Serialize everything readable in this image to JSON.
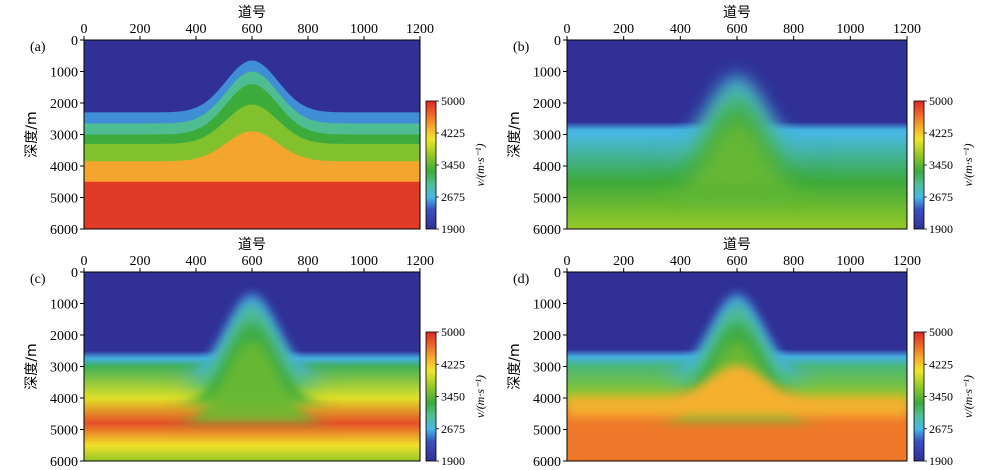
{
  "chart_data": [
    {
      "type": "heatmap",
      "panel_label": "(a)",
      "xlabel": "道号",
      "ylabel": "深度/m",
      "x_ticks": [
        "0",
        "200",
        "400",
        "600",
        "800",
        "1000",
        "1200"
      ],
      "y_ticks": [
        "0",
        "1000",
        "2000",
        "3000",
        "4000",
        "5000",
        "6000"
      ],
      "xlim": [
        0,
        1200
      ],
      "ylim": [
        0,
        6000
      ],
      "anticline_center_trace": 600,
      "layers": [
        {
          "top_flank_m": 0,
          "top_crest_m": 0,
          "velocity": 1900
        },
        {
          "top_flank_m": 2300,
          "top_crest_m": 650,
          "velocity": 2550
        },
        {
          "top_flank_m": 2650,
          "top_crest_m": 1000,
          "velocity": 3000
        },
        {
          "top_flank_m": 3000,
          "top_crest_m": 1400,
          "velocity": 3300
        },
        {
          "top_flank_m": 3300,
          "top_crest_m": 2050,
          "velocity": 3600
        },
        {
          "top_flank_m": 3850,
          "top_crest_m": 2900,
          "velocity": 4400
        },
        {
          "top_flank_m": 4500,
          "top_crest_m": 4500,
          "velocity": 4900
        }
      ],
      "colorbar": {
        "label": "v/(m·s⁻¹)",
        "ticks": [
          "1900",
          "2675",
          "3450",
          "4225",
          "5000"
        ],
        "min": 1900,
        "max": 5000
      }
    },
    {
      "type": "heatmap",
      "panel_label": "(b)",
      "xlabel": "道号",
      "ylabel": "深度/m",
      "x_ticks": [
        "0",
        "200",
        "400",
        "600",
        "800",
        "1000",
        "1200"
      ],
      "y_ticks": [
        "0",
        "1000",
        "2000",
        "3000",
        "4000",
        "5000",
        "6000"
      ],
      "xlim": [
        0,
        1200
      ],
      "ylim": [
        0,
        6000
      ],
      "description_values": {
        "water_velocity": 1900,
        "top_flank_m": 2600,
        "top_crest_m": 1100,
        "deep_velocity_m_s": [
          [
            3000,
            2700
          ],
          [
            4500,
            3300
          ],
          [
            6000,
            3700
          ]
        ]
      },
      "colorbar": {
        "label": "v/(m·s⁻¹)",
        "ticks": [
          "1900",
          "2675",
          "3450",
          "4225",
          "5000"
        ],
        "min": 1900,
        "max": 5000
      }
    },
    {
      "type": "heatmap",
      "panel_label": "(c)",
      "xlabel": "道号",
      "ylabel": "深度/m",
      "x_ticks": [
        "0",
        "200",
        "400",
        "600",
        "800",
        "1000",
        "1200"
      ],
      "y_ticks": [
        "0",
        "1000",
        "2000",
        "3000",
        "4000",
        "5000",
        "6000"
      ],
      "xlim": [
        0,
        1200
      ],
      "ylim": [
        0,
        6000
      ],
      "description_values": {
        "water_velocity": 1900,
        "top_flank_m": 2500,
        "top_crest_m": 700,
        "deep_velocity_m_s": [
          [
            3000,
            3200
          ],
          [
            4000,
            4000
          ],
          [
            4800,
            4800
          ],
          [
            5500,
            4100
          ],
          [
            6000,
            3700
          ]
        ]
      },
      "colorbar": {
        "label": "v/(m·s⁻¹)",
        "ticks": [
          "1900",
          "2675",
          "3450",
          "4225",
          "5000"
        ],
        "min": 1900,
        "max": 5000
      }
    },
    {
      "type": "heatmap",
      "panel_label": "(d)",
      "xlabel": "道号",
      "ylabel": "深度/m",
      "x_ticks": [
        "0",
        "200",
        "400",
        "600",
        "800",
        "1000",
        "1200"
      ],
      "y_ticks": [
        "0",
        "1000",
        "2000",
        "3000",
        "4000",
        "5000",
        "6000"
      ],
      "xlim": [
        0,
        1200
      ],
      "ylim": [
        0,
        6000
      ],
      "description_values": {
        "water_velocity": 1900,
        "top_flank_m": 2450,
        "top_crest_m": 700,
        "salt_top_crest_m": 2950,
        "deep_velocity_m_s": [
          [
            3000,
            3100
          ],
          [
            4000,
            3700
          ],
          [
            4500,
            4600
          ],
          [
            6000,
            4600
          ]
        ]
      },
      "colorbar": {
        "label": "v/(m·s⁻¹)",
        "ticks": [
          "1900",
          "2675",
          "3450",
          "4225",
          "5000"
        ],
        "min": 1900,
        "max": 5000
      }
    }
  ]
}
